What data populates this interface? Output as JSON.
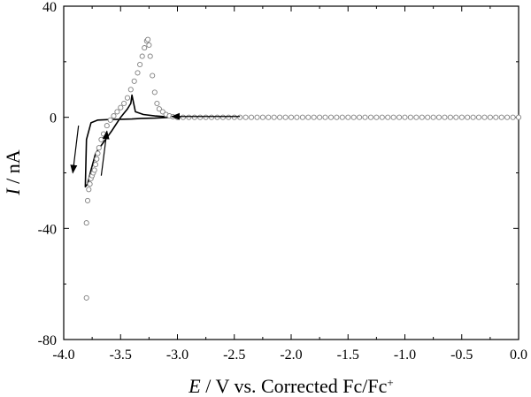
{
  "chart_data": {
    "type": "scatter",
    "title": "",
    "xlabel": {
      "italic": "E",
      "text": " / V vs. Corrected Fc/Fc",
      "superscript": "+"
    },
    "ylabel": {
      "italic": "I",
      "text": " / nA"
    },
    "xlim": [
      -4.0,
      0.0
    ],
    "ylim": [
      -80,
      40
    ],
    "xticks": [
      -4.0,
      -3.5,
      -3.0,
      -2.5,
      -2.0,
      -1.5,
      -1.0,
      -0.5,
      0.0
    ],
    "xtick_labels": [
      "-4.0",
      "-3.5",
      "-3.0",
      "-2.5",
      "-2.0",
      "-1.5",
      "-1.0",
      "-0.5",
      "0.0"
    ],
    "yticks": [
      40,
      0,
      -40,
      -80
    ],
    "ytick_labels": [
      "40",
      "0",
      "-40",
      "-80"
    ],
    "grid": false,
    "legend": "none",
    "series": [
      {
        "style": "line",
        "color": "#000000",
        "x": [
          -3.06,
          -3.2,
          -3.32,
          -3.4,
          -3.5,
          -3.6,
          -3.7,
          -3.76,
          -3.8,
          -3.81,
          -3.79,
          -3.76,
          -3.72,
          -3.65,
          -3.58,
          -3.5,
          -3.44,
          -3.41,
          -3.4,
          -3.39,
          -3.37,
          -3.3,
          -3.2,
          -3.1,
          -3.0,
          -2.95
        ],
        "y": [
          0,
          -0.3,
          -0.4,
          -0.6,
          -0.7,
          -0.8,
          -1.0,
          -2.0,
          -8.0,
          -25.0,
          -24.0,
          -19.0,
          -13.0,
          -9.0,
          -5.0,
          0.0,
          3.0,
          5.0,
          8.0,
          6.0,
          2.0,
          1.0,
          0.5,
          0.2,
          0.0,
          0.0
        ]
      },
      {
        "style": "open-circle",
        "color": "#808080",
        "x": [
          -3.8,
          -3.8,
          -3.79,
          -3.78,
          -3.77,
          -3.76,
          -3.75,
          -3.74,
          -3.73,
          -3.72,
          -3.71,
          -3.7,
          -3.69,
          -3.67,
          -3.65,
          -3.62,
          -3.59,
          -3.56,
          -3.53,
          -3.5,
          -3.47,
          -3.44,
          -3.41,
          -3.38,
          -3.35,
          -3.33,
          -3.31,
          -3.29,
          -3.27,
          -3.26,
          -3.25,
          -3.24,
          -3.22,
          -3.2,
          -3.18,
          -3.16,
          -3.13,
          -3.1,
          -3.07,
          -3.04,
          -3.0,
          -2.95,
          -2.9,
          -2.85,
          -2.8,
          -2.75,
          -2.7,
          -2.65,
          -2.6,
          -2.55,
          -2.5,
          -2.45,
          -2.4,
          -2.35,
          -2.3,
          -2.25,
          -2.2,
          -2.15,
          -2.1,
          -2.05,
          -2.0,
          -1.95,
          -1.9,
          -1.85,
          -1.8,
          -1.75,
          -1.7,
          -1.65,
          -1.6,
          -1.55,
          -1.5,
          -1.45,
          -1.4,
          -1.35,
          -1.3,
          -1.25,
          -1.2,
          -1.15,
          -1.1,
          -1.05,
          -1.0,
          -0.95,
          -0.9,
          -0.85,
          -0.8,
          -0.75,
          -0.7,
          -0.65,
          -0.6,
          -0.55,
          -0.5,
          -0.45,
          -0.4,
          -0.35,
          -0.3,
          -0.25,
          -0.2,
          -0.15,
          -0.1,
          -0.05,
          0.0
        ],
        "y": [
          -65,
          -38,
          -30,
          -26,
          -24,
          -22,
          -21,
          -20,
          -19,
          -17,
          -15,
          -13,
          -11,
          -8,
          -6,
          -3,
          -1,
          0.5,
          2,
          3.5,
          5,
          7,
          10,
          13,
          16,
          19,
          22,
          25,
          27.5,
          28,
          26,
          22,
          15,
          9,
          5,
          3,
          2,
          1,
          0.5,
          0.2,
          0,
          0,
          0,
          0,
          0,
          0,
          0,
          0,
          0,
          0,
          0,
          0,
          0,
          0,
          0,
          0,
          0,
          0,
          0,
          0,
          0,
          0,
          0,
          0,
          0,
          0,
          0,
          0,
          0,
          0,
          0,
          0,
          0,
          0,
          0,
          0,
          0,
          0,
          0,
          0,
          0,
          0,
          0,
          0,
          0,
          0,
          0,
          0,
          0,
          0,
          0,
          0,
          0,
          0,
          0,
          0,
          0,
          0,
          0,
          0,
          0
        ]
      }
    ],
    "annotations": [
      {
        "type": "arrow",
        "from": [
          -2.45,
          0.3
        ],
        "to": [
          -3.05,
          0.3
        ]
      },
      {
        "type": "arrow",
        "from": [
          -3.87,
          -3
        ],
        "to": [
          -3.92,
          -20
        ]
      },
      {
        "type": "arrow",
        "from": [
          -3.67,
          -21
        ],
        "to": [
          -3.62,
          -5
        ]
      }
    ]
  }
}
